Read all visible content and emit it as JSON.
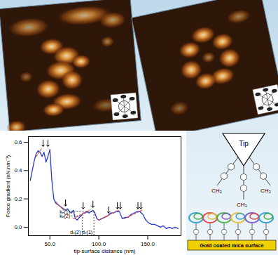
{
  "chart_data": {
    "type": "line",
    "x_label": "tip-surface distance (nm)",
    "y_label": "Force gradient (nN.nm⁻¹)",
    "xlim": [
      28,
      184
    ],
    "ylim": [
      -0.06,
      0.64
    ],
    "xticks": [
      {
        "value": 50,
        "label": "50.0"
      },
      {
        "value": 100,
        "label": "100.0"
      },
      {
        "value": 150,
        "label": "150.0"
      }
    ],
    "yticks": [
      {
        "value": 0,
        "label": "0.0"
      },
      0.2,
      0.4,
      0.6
    ],
    "series": [
      {
        "color": "#2a3ad0",
        "x": [
          30,
          32,
          34,
          36,
          38,
          40,
          42,
          44,
          46,
          48,
          50,
          52,
          54,
          56,
          58,
          60,
          62,
          64,
          66,
          68,
          70,
          72,
          74,
          76,
          78,
          80,
          82,
          84,
          86,
          88,
          90,
          92,
          94,
          96,
          98,
          100,
          103,
          106,
          109,
          112,
          115,
          118,
          121,
          124,
          127,
          130,
          133,
          136,
          139,
          142,
          145,
          148,
          151,
          154,
          157,
          160,
          163,
          166,
          169,
          172,
          175,
          178,
          181
        ],
        "values": [
          0.33,
          0.4,
          0.47,
          0.52,
          0.54,
          0.53,
          0.5,
          0.53,
          0.46,
          0.5,
          0.55,
          0.33,
          0.2,
          0.17,
          0.16,
          0.15,
          0.14,
          0.13,
          0.12,
          0.13,
          0.11,
          0.1,
          0.12,
          0.06,
          0.05,
          0.07,
          0.08,
          0.1,
          0.1,
          0.11,
          0.1,
          0.11,
          0.12,
          0.1,
          0.06,
          0.05,
          0.06,
          0.07,
          0.08,
          0.1,
          0.1,
          0.11,
          0.11,
          0.06,
          0.07,
          0.07,
          0.09,
          0.1,
          0.11,
          0.11,
          0.09,
          0.05,
          0.03,
          0.02,
          0.02,
          0.01,
          0.0,
          0.01,
          -0.01,
          0.0,
          -0.01,
          0.0,
          -0.01
        ]
      },
      {
        "color": "#e04040",
        "line_style": "dashed",
        "x": [
          36,
          42,
          49,
          56,
          64,
          69,
          74,
          90,
          95,
          100,
          120,
          123,
          126,
          144
        ],
        "values": [
          0.5,
          0.56,
          null,
          0.18,
          0.12,
          null,
          0.06,
          0.12,
          null,
          0.05,
          0.12,
          null,
          0.06,
          0.12
        ]
      }
    ],
    "arrows": {
      "x": [
        43,
        48,
        66,
        84,
        94,
        110,
        119,
        122,
        140,
        143
      ],
      "y": [
        0.57,
        0.57,
        0.15,
        0.13,
        0.14,
        0.1,
        0.13,
        0.13,
        0.13,
        0.13
      ]
    },
    "guides": [
      {
        "k_label": "kₑ(1)",
        "d_label": "dₑ(1)",
        "x_start": 72,
        "x": 95,
        "y": 0.11
      },
      {
        "k_label": "kₑ(2)",
        "d_label": "dₑ(2)",
        "x_start": 72,
        "x": 83,
        "y": 0.08
      }
    ]
  },
  "schematic": {
    "tip": "Tip",
    "groups": [
      "CH₃",
      "CH₃",
      "CH₃"
    ],
    "surface": "Gold coated mica surface"
  }
}
